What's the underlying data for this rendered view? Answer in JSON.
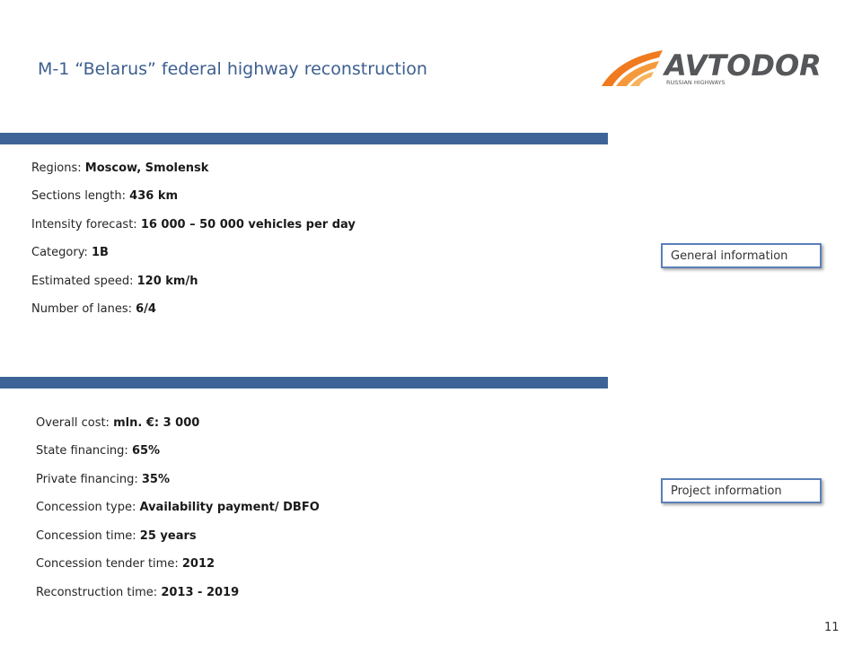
{
  "slide": {
    "title": "M-1 “Belarus” federal highway reconstruction",
    "logo": {
      "brand": "AVTODOR",
      "tagline": "RUSSIAN HIGHWAYS",
      "accent_color": "#f07a1e",
      "text_color": "#55575a"
    },
    "accent_bar_color": "#3e6497",
    "general": {
      "label": "General information",
      "items": [
        {
          "label": "Regions:",
          "value": "Moscow, Smolensk"
        },
        {
          "label": "Sections length:",
          "value": "436 km"
        },
        {
          "label": "Intensity forecast:",
          "value": "16 000 – 50 000 vehicles per day"
        },
        {
          "label": "Category:",
          "value": "1B"
        },
        {
          "label": "Estimated speed:",
          "value": "120 km/h"
        },
        {
          "label": "Number of lanes:",
          "value": "6/4"
        }
      ]
    },
    "project": {
      "label": "Project information",
      "items": [
        {
          "label": "Overall cost:",
          "value": "mln. €: 3 000"
        },
        {
          "label": "State financing:",
          "value": "65%"
        },
        {
          "label": "Private financing:",
          "value": "35%"
        },
        {
          "label": "Concession type:",
          "value": "Availability payment/ DBFO"
        },
        {
          "label": "Concession time:",
          "value": "25 years"
        },
        {
          "label": "Concession tender time:",
          "value": "2012"
        },
        {
          "label": "Reconstruction time:",
          "value": "2013 - 2019"
        }
      ]
    },
    "page_number": "11"
  }
}
